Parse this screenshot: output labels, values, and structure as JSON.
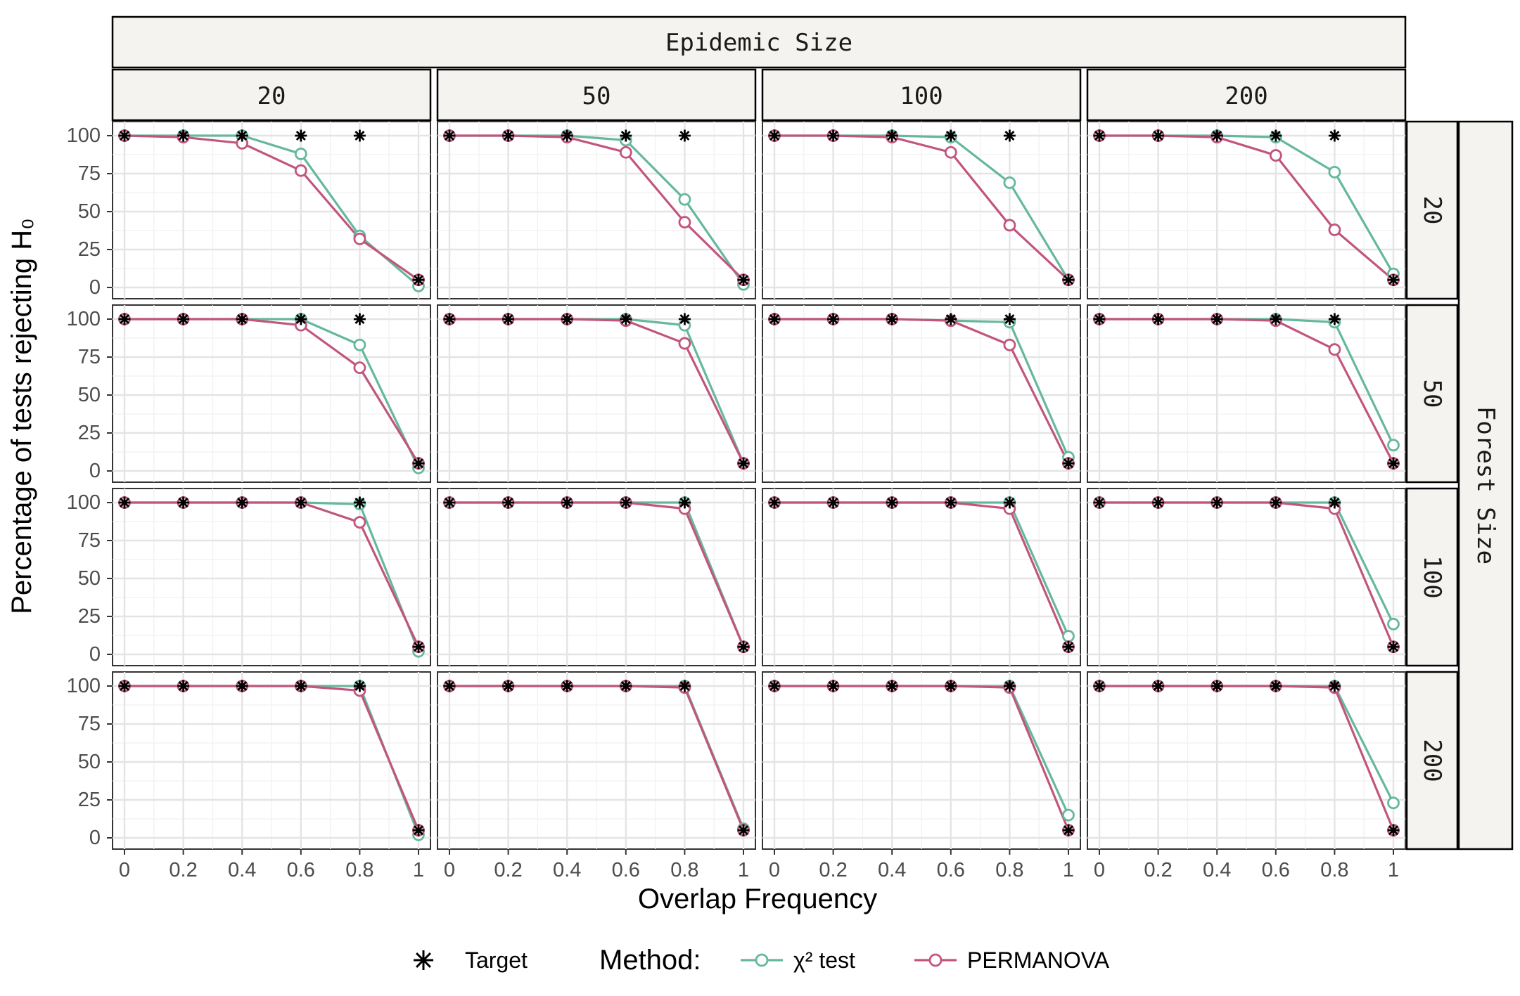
{
  "chart_data": {
    "type": "line",
    "facet_col_title": "Epidemic Size",
    "facet_row_title": "Forest Size",
    "col_labels": [
      "20",
      "50",
      "100",
      "200"
    ],
    "row_labels": [
      "20",
      "50",
      "100",
      "200"
    ],
    "xlabel": "Overlap Frequency",
    "ylabel": "Percentage of tests rejecting H₀",
    "x": [
      0,
      0.2,
      0.4,
      0.6,
      0.8,
      1
    ],
    "x_tick_labels": [
      "0",
      "0.2",
      "0.4",
      "0.6",
      "0.8",
      "1"
    ],
    "y_ticks": [
      0,
      25,
      50,
      75,
      100
    ],
    "y_tick_labels": [
      "0",
      "25",
      "50",
      "75",
      "100"
    ],
    "xlim": [
      0,
      1
    ],
    "ylim": [
      0,
      100
    ],
    "grid": true,
    "legend": {
      "position": "bottom",
      "target_label": "Target",
      "method_title": "Method:",
      "items": [
        "χ² test",
        "PERMANOVA"
      ]
    },
    "colors": {
      "chi2": "#66b89c",
      "permanova": "#c2557f",
      "target": "#000000"
    },
    "panels": [
      {
        "forest": "20",
        "epidemic": "20",
        "chi2": [
          100,
          100,
          100,
          88,
          34,
          1
        ],
        "permanova": [
          100,
          99,
          95,
          77,
          32,
          5
        ],
        "target": [
          100,
          100,
          100,
          100,
          100,
          5
        ]
      },
      {
        "forest": "20",
        "epidemic": "50",
        "chi2": [
          100,
          100,
          100,
          97,
          58,
          2
        ],
        "permanova": [
          100,
          100,
          99,
          89,
          43,
          5
        ],
        "target": [
          100,
          100,
          100,
          100,
          100,
          5
        ]
      },
      {
        "forest": "20",
        "epidemic": "100",
        "chi2": [
          100,
          100,
          100,
          99,
          69,
          5
        ],
        "permanova": [
          100,
          100,
          99,
          89,
          41,
          5
        ],
        "target": [
          100,
          100,
          100,
          100,
          100,
          5
        ]
      },
      {
        "forest": "20",
        "epidemic": "200",
        "chi2": [
          100,
          100,
          100,
          99,
          76,
          9
        ],
        "permanova": [
          100,
          100,
          99,
          87,
          38,
          5
        ],
        "target": [
          100,
          100,
          100,
          100,
          100,
          5
        ]
      },
      {
        "forest": "50",
        "epidemic": "20",
        "chi2": [
          100,
          100,
          100,
          100,
          83,
          2
        ],
        "permanova": [
          100,
          100,
          100,
          96,
          68,
          5
        ],
        "target": [
          100,
          100,
          100,
          100,
          100,
          5
        ]
      },
      {
        "forest": "50",
        "epidemic": "50",
        "chi2": [
          100,
          100,
          100,
          100,
          96,
          5
        ],
        "permanova": [
          100,
          100,
          100,
          99,
          84,
          5
        ],
        "target": [
          100,
          100,
          100,
          100,
          100,
          5
        ]
      },
      {
        "forest": "50",
        "epidemic": "100",
        "chi2": [
          100,
          100,
          100,
          99,
          98,
          9
        ],
        "permanova": [
          100,
          100,
          100,
          99,
          83,
          5
        ],
        "target": [
          100,
          100,
          100,
          100,
          100,
          5
        ]
      },
      {
        "forest": "50",
        "epidemic": "200",
        "chi2": [
          100,
          100,
          100,
          100,
          98,
          17
        ],
        "permanova": [
          100,
          100,
          100,
          99,
          80,
          5
        ],
        "target": [
          100,
          100,
          100,
          100,
          100,
          5
        ]
      },
      {
        "forest": "100",
        "epidemic": "20",
        "chi2": [
          100,
          100,
          100,
          100,
          99,
          2
        ],
        "permanova": [
          100,
          100,
          100,
          100,
          87,
          5
        ],
        "target": [
          100,
          100,
          100,
          100,
          100,
          5
        ]
      },
      {
        "forest": "100",
        "epidemic": "50",
        "chi2": [
          100,
          100,
          100,
          100,
          100,
          5
        ],
        "permanova": [
          100,
          100,
          100,
          100,
          96,
          5
        ],
        "target": [
          100,
          100,
          100,
          100,
          100,
          5
        ]
      },
      {
        "forest": "100",
        "epidemic": "100",
        "chi2": [
          100,
          100,
          100,
          100,
          100,
          12
        ],
        "permanova": [
          100,
          100,
          100,
          100,
          96,
          5
        ],
        "target": [
          100,
          100,
          100,
          100,
          100,
          5
        ]
      },
      {
        "forest": "100",
        "epidemic": "200",
        "chi2": [
          100,
          100,
          100,
          100,
          100,
          20
        ],
        "permanova": [
          100,
          100,
          100,
          100,
          96,
          5
        ],
        "target": [
          100,
          100,
          100,
          100,
          100,
          5
        ]
      },
      {
        "forest": "200",
        "epidemic": "20",
        "chi2": [
          100,
          100,
          100,
          100,
          100,
          2
        ],
        "permanova": [
          100,
          100,
          100,
          100,
          97,
          5
        ],
        "target": [
          100,
          100,
          100,
          100,
          100,
          5
        ]
      },
      {
        "forest": "200",
        "epidemic": "50",
        "chi2": [
          100,
          100,
          100,
          100,
          100,
          6
        ],
        "permanova": [
          100,
          100,
          100,
          100,
          99,
          5
        ],
        "target": [
          100,
          100,
          100,
          100,
          100,
          5
        ]
      },
      {
        "forest": "200",
        "epidemic": "100",
        "chi2": [
          100,
          100,
          100,
          100,
          100,
          15
        ],
        "permanova": [
          100,
          100,
          100,
          100,
          99,
          5
        ],
        "target": [
          100,
          100,
          100,
          100,
          100,
          5
        ]
      },
      {
        "forest": "200",
        "epidemic": "200",
        "chi2": [
          100,
          100,
          100,
          100,
          100,
          23
        ],
        "permanova": [
          100,
          100,
          100,
          100,
          99,
          5
        ],
        "target": [
          100,
          100,
          100,
          100,
          100,
          5
        ]
      }
    ]
  }
}
